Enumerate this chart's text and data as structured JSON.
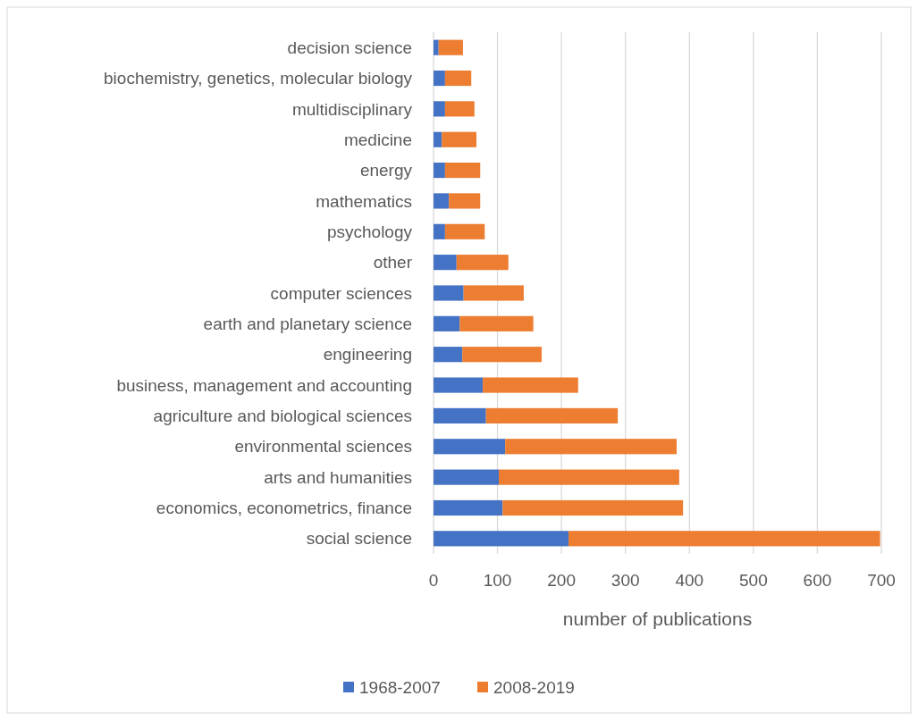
{
  "chart_data": {
    "type": "bar",
    "orientation": "horizontal",
    "stacked": true,
    "categories": [
      "decision science",
      "biochemistry, genetics, molecular biology",
      "multidisciplinary",
      "medicine",
      "energy",
      "mathematics",
      "psychology",
      "other",
      "computer sciences",
      "earth and planetary science",
      "engineering",
      "business, management and accounting",
      "agriculture and biological sciences",
      "environmental sciences",
      "arts and humanities",
      "economics, econometrics, finance",
      "social science"
    ],
    "series": [
      {
        "name": "1968-2007",
        "color": "#4472c4",
        "values": [
          8,
          18,
          18,
          13,
          18,
          24,
          18,
          36,
          47,
          41,
          45,
          77,
          82,
          112,
          102,
          108,
          211
        ]
      },
      {
        "name": "2008-2019",
        "color": "#ed7d31",
        "values": [
          38,
          41,
          46,
          54,
          55,
          49,
          62,
          81,
          94,
          115,
          124,
          149,
          206,
          268,
          282,
          282,
          487
        ]
      }
    ],
    "xlim": [
      0,
      700
    ],
    "xticks": [
      0,
      100,
      200,
      300,
      400,
      500,
      600,
      700
    ],
    "xlabel": "number of publications",
    "grid": "x",
    "legend": "bottom"
  }
}
